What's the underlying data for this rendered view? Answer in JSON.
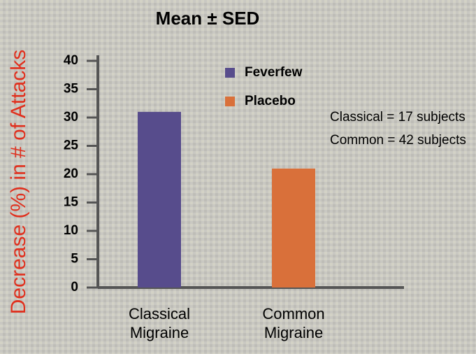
{
  "chart_data": {
    "type": "bar",
    "title": "Mean ± SED",
    "ylabel": "Decrease (%) in # of Attacks",
    "categories": [
      "Classical Migraine",
      "Common Migraine"
    ],
    "series": [
      {
        "name": "Feverfew",
        "color": "#574c8c",
        "values": [
          31,
          null
        ]
      },
      {
        "name": "Placebo",
        "color": "#d9703a",
        "values": [
          null,
          21
        ]
      }
    ],
    "ylim": [
      0,
      40
    ],
    "yticks": [
      0,
      5,
      10,
      15,
      20,
      25,
      30,
      35,
      40
    ],
    "annotations": [
      "Classical = 17 subjects",
      "Common = 42 subjects"
    ],
    "grid": false
  }
}
